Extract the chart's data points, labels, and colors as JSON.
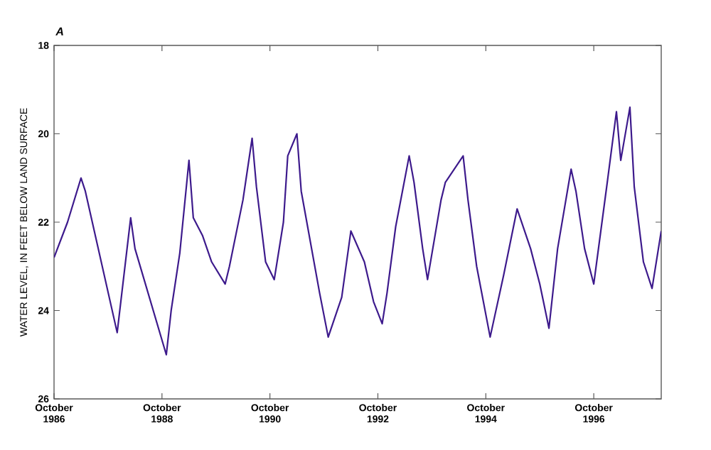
{
  "chart_data": {
    "type": "line",
    "title": "A",
    "ylabel": "WATER LEVEL, IN FEET BELOW LAND SURFACE",
    "x": [
      "1986-10",
      "1987-01",
      "1987-04",
      "1987-05",
      "1987-12",
      "1988-03",
      "1988-04",
      "1988-11",
      "1988-12",
      "1989-02",
      "1989-04",
      "1989-05",
      "1989-07",
      "1989-09",
      "1989-12",
      "1990-01",
      "1990-04",
      "1990-06",
      "1990-07",
      "1990-09",
      "1990-11",
      "1991-01",
      "1991-02",
      "1991-04",
      "1991-05",
      "1991-09",
      "1991-11",
      "1992-02",
      "1992-04",
      "1992-07",
      "1992-09",
      "1992-11",
      "1992-12",
      "1993-02",
      "1993-05",
      "1993-06",
      "1993-08",
      "1993-09",
      "1993-12",
      "1994-01",
      "1994-05",
      "1994-06",
      "1994-08",
      "1994-11",
      "1995-02",
      "1995-05",
      "1995-08",
      "1995-10",
      "1995-12",
      "1996-02",
      "1996-05",
      "1996-06",
      "1996-08",
      "1996-10",
      "1997-01",
      "1997-03",
      "1997-04",
      "1997-06",
      "1997-07",
      "1997-09",
      "1997-11",
      "1998-01"
    ],
    "values": [
      22.8,
      22.0,
      21.0,
      21.3,
      24.5,
      21.9,
      22.6,
      25.0,
      24.0,
      22.7,
      20.6,
      21.9,
      22.3,
      22.9,
      23.4,
      23.0,
      21.5,
      20.1,
      21.2,
      22.9,
      23.3,
      22.0,
      20.5,
      20.0,
      21.3,
      23.6,
      24.6,
      23.7,
      22.2,
      22.9,
      23.8,
      24.3,
      23.6,
      22.1,
      20.5,
      21.1,
      22.6,
      23.3,
      21.5,
      21.1,
      20.5,
      21.5,
      23.0,
      24.6,
      23.2,
      21.7,
      22.6,
      23.4,
      24.4,
      22.6,
      20.8,
      21.3,
      22.6,
      23.4,
      21.1,
      19.5,
      20.6,
      19.4,
      21.2,
      22.9,
      23.5,
      22.2
    ],
    "color": "#3d1a8c",
    "xlim": [
      "1986-10",
      "1998-01"
    ],
    "xticks": [
      {
        "value": "1986-10",
        "label": "October 1986"
      },
      {
        "value": "1988-10",
        "label": "October 1988"
      },
      {
        "value": "1990-10",
        "label": "October 1990"
      },
      {
        "value": "1992-10",
        "label": "October 1992"
      },
      {
        "value": "1994-10",
        "label": "October 1994"
      },
      {
        "value": "1996-10",
        "label": "October 1996"
      }
    ],
    "ylim": [
      26,
      18
    ],
    "yticks": [
      18,
      20,
      22,
      24,
      26
    ]
  }
}
